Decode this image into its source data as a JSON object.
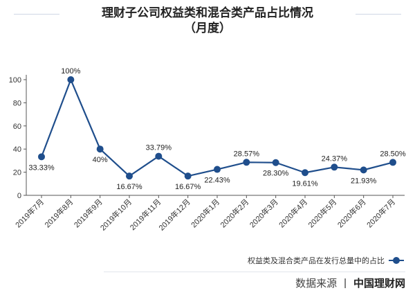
{
  "header": {
    "title_line1": "理财子公司权益类和混合类产品占比情况",
    "title_line2": "（月度）"
  },
  "chart_data": {
    "type": "line",
    "title": "理财子公司权益类和混合类产品占比情况（月度）",
    "categories": [
      "2019年7月",
      "2019年8月",
      "2019年9月",
      "2019年10月",
      "2019年11月",
      "2019年12月",
      "2020年1月",
      "2020年2月",
      "2020年3月",
      "2020年4月",
      "2020年5月",
      "2020年6月",
      "2020年7月"
    ],
    "series": [
      {
        "name": "权益类及混合类产品在发行总量中的占比",
        "values": [
          33.33,
          100,
          40,
          16.67,
          33.79,
          16.67,
          22.43,
          28.57,
          28.3,
          19.61,
          24.37,
          21.93,
          28.5
        ],
        "labels": [
          "33.33%",
          "100%",
          "40%",
          "16.67%",
          "33.79%",
          "16.67%",
          "22.43%",
          "28.57%",
          "28.30%",
          "19.61%",
          "24.37%",
          "21.93%",
          "28.50%"
        ]
      }
    ],
    "yticks": [
      "0",
      "20",
      "40",
      "60",
      "80",
      "100"
    ],
    "ylim": [
      0,
      100
    ],
    "grid": false,
    "legend_position": "bottom-right",
    "line_color": "#1f4e8c"
  },
  "footer": {
    "source_label": "数据来源",
    "separator": "|",
    "source_name": "中国理财网"
  }
}
